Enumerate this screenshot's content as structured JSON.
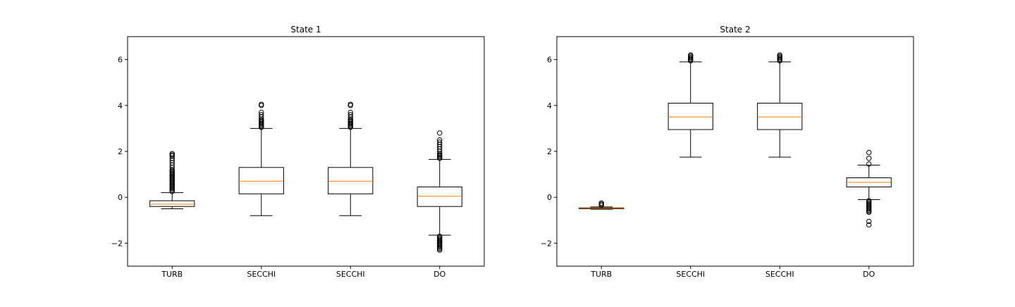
{
  "chart_data": [
    {
      "type": "boxplot",
      "title": "State 1",
      "categories": [
        "TURB",
        "SECCHI",
        "SECCHI",
        "DO"
      ],
      "ylim": [
        -3,
        7
      ],
      "yticks": [
        -2,
        0,
        2,
        4,
        6
      ],
      "ytick_labels": [
        "−2",
        "0",
        "2",
        "4",
        "6"
      ],
      "grid": false,
      "boxes": [
        {
          "whislo": -0.5,
          "q1": -0.4,
          "med": -0.3,
          "q3": -0.15,
          "whishi": 0.2,
          "fliers": [
            0.25,
            0.3,
            0.35,
            0.4,
            0.45,
            0.5,
            0.55,
            0.6,
            0.65,
            0.7,
            0.75,
            0.8,
            0.85,
            0.9,
            0.95,
            1.0,
            1.05,
            1.1,
            1.15,
            1.2,
            1.3,
            1.4,
            1.5,
            1.6,
            1.7,
            1.8,
            1.85,
            1.9
          ]
        },
        {
          "whislo": -0.8,
          "q1": 0.15,
          "med": 0.7,
          "q3": 1.3,
          "whishi": 3.0,
          "fliers": [
            3.05,
            3.1,
            3.15,
            3.2,
            3.25,
            3.3,
            3.35,
            3.4,
            3.5,
            3.6,
            3.7,
            4.0,
            4.05
          ]
        },
        {
          "whislo": -0.8,
          "q1": 0.15,
          "med": 0.7,
          "q3": 1.3,
          "whishi": 3.0,
          "fliers": [
            3.05,
            3.1,
            3.15,
            3.2,
            3.25,
            3.3,
            3.35,
            3.4,
            3.5,
            3.6,
            3.7,
            4.0,
            4.05
          ]
        },
        {
          "whislo": -1.65,
          "q1": -0.4,
          "med": 0.05,
          "q3": 0.45,
          "whishi": 1.65,
          "fliers": [
            -1.7,
            -1.75,
            -1.8,
            -1.85,
            -1.9,
            -1.95,
            -2.0,
            -2.05,
            -2.1,
            -2.15,
            -2.2,
            -2.25,
            -2.3,
            1.7,
            1.75,
            1.8,
            1.85,
            1.9,
            2.0,
            2.1,
            2.2,
            2.3,
            2.4,
            2.5,
            2.8
          ]
        }
      ]
    },
    {
      "type": "boxplot",
      "title": "State 2",
      "categories": [
        "TURB",
        "SECCHI",
        "SECCHI",
        "DO"
      ],
      "ylim": [
        -3,
        7
      ],
      "yticks": [
        -2,
        0,
        2,
        4,
        6
      ],
      "ytick_labels": [
        "−2",
        "0",
        "2",
        "4",
        "6"
      ],
      "grid": false,
      "boxes": [
        {
          "whislo": -0.52,
          "q1": -0.5,
          "med": -0.48,
          "q3": -0.46,
          "whishi": -0.42,
          "fliers": [
            -0.35,
            -0.3,
            -0.25
          ]
        },
        {
          "whislo": 1.75,
          "q1": 2.95,
          "med": 3.5,
          "q3": 4.1,
          "whishi": 5.9,
          "fliers": [
            5.95,
            6.0,
            6.05,
            6.1,
            6.15,
            6.2
          ]
        },
        {
          "whislo": 1.75,
          "q1": 2.95,
          "med": 3.5,
          "q3": 4.1,
          "whishi": 5.9,
          "fliers": [
            5.95,
            6.0,
            6.05,
            6.1,
            6.15,
            6.2
          ]
        },
        {
          "whislo": -0.1,
          "q1": 0.45,
          "med": 0.65,
          "q3": 0.85,
          "whishi": 1.4,
          "fliers": [
            -0.15,
            -0.2,
            -0.25,
            -0.3,
            -0.35,
            -0.4,
            -0.45,
            -0.5,
            -0.55,
            -0.6,
            -0.65,
            -1.05,
            -1.2,
            1.45,
            1.7,
            1.95
          ]
        }
      ]
    }
  ],
  "colors": {
    "box_edge": "#000000",
    "median": "#ff7f0e",
    "flier_edge": "#000000",
    "background": "#ffffff"
  }
}
